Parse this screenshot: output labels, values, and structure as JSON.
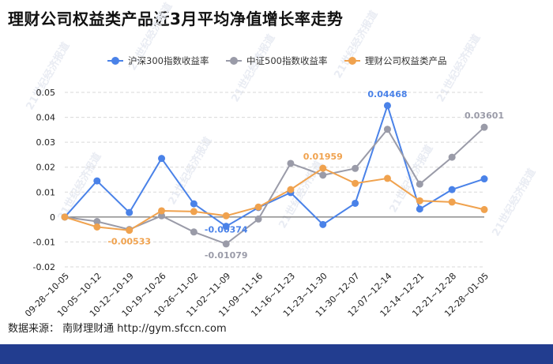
{
  "title": "理财公司权益类产品近3月平均净值增长率走势",
  "source": "数据来源： 南财理财通 http://gym.sfccn.com",
  "watermark": "21世纪经济报道",
  "colors": {
    "series": [
      "#4a82e8",
      "#9a9ba8",
      "#f0a24e"
    ],
    "grid": "#d9d9d9",
    "axis_text": "#222222",
    "footer": "#223d8f"
  },
  "chart_data": {
    "type": "line",
    "title": "",
    "xlabel": "",
    "ylabel": "",
    "ylim": [
      -0.02,
      0.05
    ],
    "yticks": [
      "0.05",
      "0.04",
      "0.03",
      "0.02",
      "0.01",
      "0",
      "-0.01",
      "-0.02"
    ],
    "ytick_values": [
      0.05,
      0.04,
      0.03,
      0.02,
      0.01,
      0,
      -0.01,
      -0.02
    ],
    "grid": true,
    "legend_position": "top",
    "categories": [
      "09-28~10-05",
      "10-05~10-12",
      "10-12~10-19",
      "10-19~10-26",
      "10-26~11-02",
      "11-02~11-09",
      "11-09~11-16",
      "11-16~11-23",
      "11-23~11-30",
      "11-30~12-07",
      "12-07~12-14",
      "12-14~12-21",
      "12-21~12-28",
      "12-28~01-05"
    ],
    "series": [
      {
        "name": "沪深300指数收益率",
        "values": [
          0,
          0.0145,
          0.0018,
          0.0235,
          0.0053,
          -0.00374,
          0.0038,
          0.0098,
          -0.003,
          0.0055,
          0.04468,
          0.0032,
          0.011,
          0.0153
        ]
      },
      {
        "name": "中证500指数收益率",
        "values": [
          0,
          -0.0018,
          -0.005,
          0.0005,
          -0.006,
          -0.01079,
          -0.0008,
          0.0215,
          0.0168,
          0.0195,
          0.0352,
          0.0132,
          0.024,
          0.03601
        ]
      },
      {
        "name": "理财公司权益类产品",
        "values": [
          0,
          -0.004,
          -0.00533,
          0.0025,
          0.0022,
          0.0005,
          0.004,
          0.011,
          0.01959,
          0.0135,
          0.0155,
          0.0065,
          0.006,
          0.003
        ]
      }
    ],
    "annotations": [
      {
        "series": 0,
        "index": 10,
        "text": "0.04468"
      },
      {
        "series": 1,
        "index": 13,
        "text": "0.03601"
      },
      {
        "series": 2,
        "index": 8,
        "text": "0.01959"
      },
      {
        "series": 2,
        "index": 2,
        "text": "-0.00533"
      },
      {
        "series": 0,
        "index": 5,
        "text": "-0.00374"
      },
      {
        "series": 1,
        "index": 5,
        "text": "-0.01079"
      }
    ]
  }
}
